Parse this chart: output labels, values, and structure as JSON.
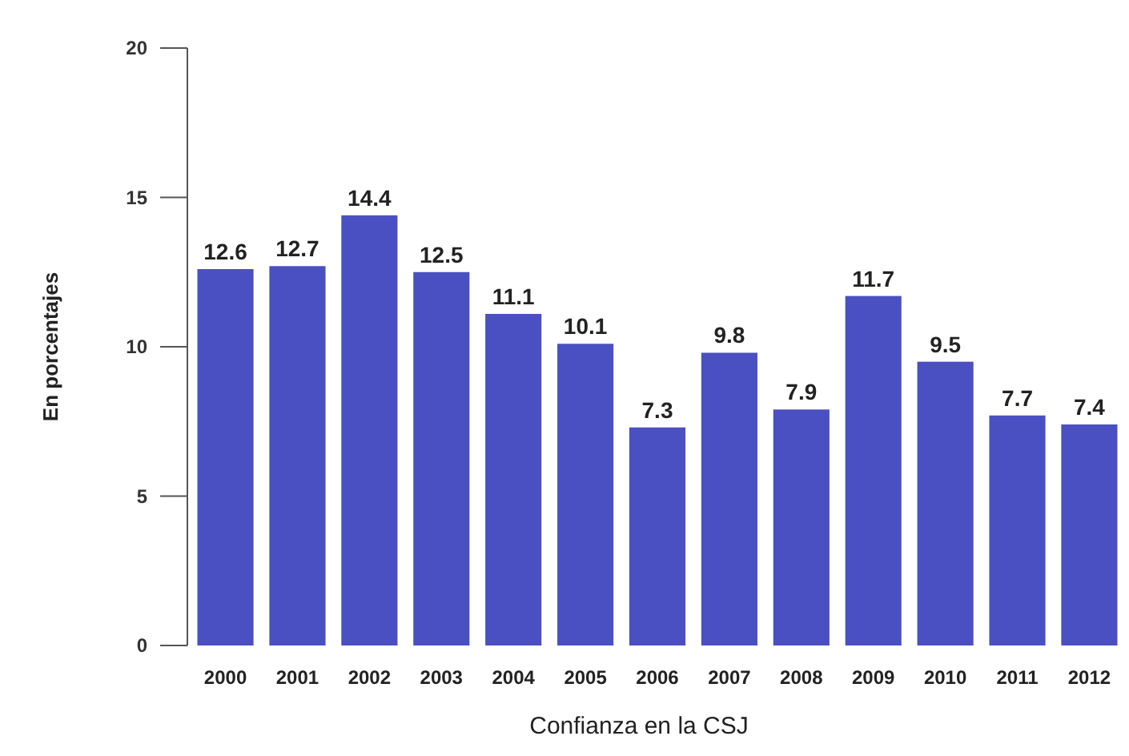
{
  "chart_data": {
    "type": "bar",
    "xlabel": "Confianza en la CSJ",
    "ylabel": "En porcentajes",
    "categories": [
      "2000",
      "2001",
      "2002",
      "2003",
      "2004",
      "2005",
      "2006",
      "2007",
      "2008",
      "2009",
      "2010",
      "2011",
      "2012"
    ],
    "values": [
      12.6,
      12.7,
      14.4,
      12.5,
      11.1,
      10.1,
      7.3,
      9.8,
      7.9,
      11.7,
      9.5,
      7.7,
      7.4
    ],
    "color": "#4a50c2",
    "ylim": [
      0,
      20
    ],
    "yticks": [
      0,
      5,
      10,
      15,
      20
    ],
    "data_labels": true
  }
}
